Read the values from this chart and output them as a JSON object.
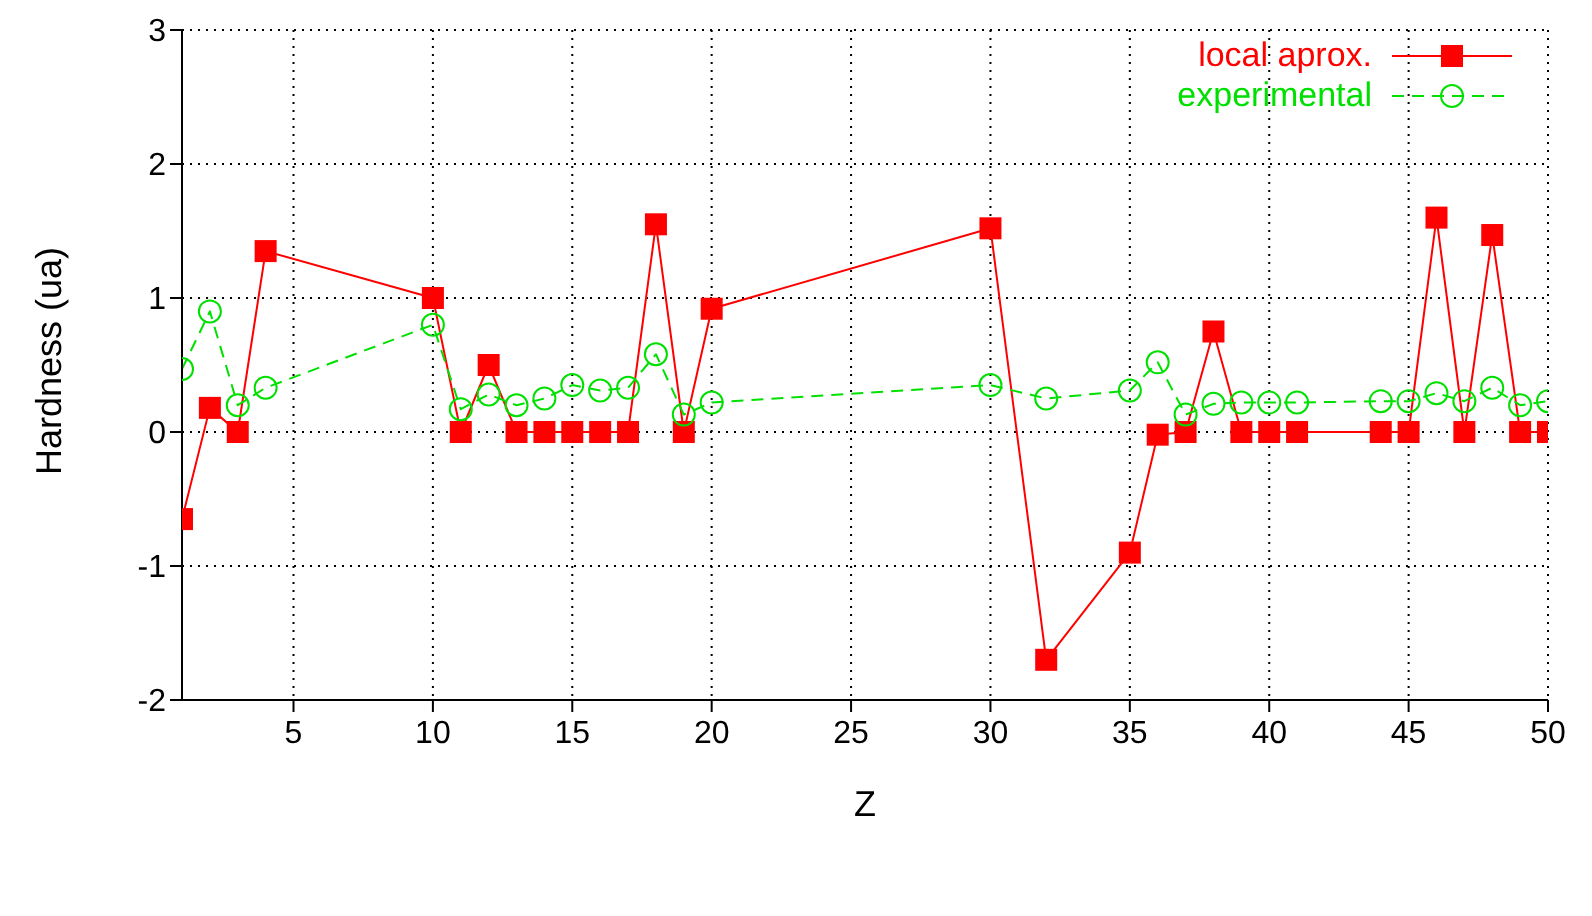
{
  "chart_data": {
    "type": "line",
    "xlabel": "Z",
    "ylabel": "Hardness (ua)",
    "x": [
      1,
      2,
      3,
      4,
      10,
      11,
      12,
      13,
      14,
      15,
      16,
      17,
      18,
      19,
      20,
      30,
      32,
      35,
      36,
      37,
      38,
      39,
      40,
      41,
      44,
      45,
      46,
      47,
      48,
      49,
      50
    ],
    "series": [
      {
        "name": "local aprox.",
        "color": "#ff0000",
        "marker": "square",
        "line_style": "solid",
        "values": [
          -0.65,
          0.18,
          0,
          1.35,
          1.0,
          0,
          0.5,
          0,
          0,
          0,
          0,
          0,
          1.55,
          0,
          0.92,
          1.52,
          -1.7,
          -0.9,
          -0.02,
          0,
          0.75,
          0,
          0,
          0,
          0,
          0,
          1.6,
          0,
          1.47,
          0,
          0
        ]
      },
      {
        "name": "experimental",
        "color": "#00e000",
        "marker": "circle",
        "line_style": "dashed",
        "values": [
          0.47,
          0.9,
          0.2,
          0.33,
          0.8,
          0.17,
          0.28,
          0.2,
          0.25,
          0.35,
          0.31,
          0.33,
          0.58,
          0.13,
          0.22,
          0.35,
          0.25,
          0.31,
          0.52,
          0.13,
          0.21,
          0.22,
          0.22,
          0.22,
          0.23,
          0.23,
          0.29,
          0.23,
          0.33,
          0.2,
          0.23
        ]
      }
    ],
    "xlim": [
      1,
      50
    ],
    "xticks": [
      5,
      10,
      15,
      20,
      25,
      30,
      35,
      40,
      45,
      50
    ],
    "ylim": [
      -2,
      3
    ],
    "yticks": [
      -2,
      -1,
      0,
      1,
      2,
      3
    ],
    "grid": true,
    "legend": "top right"
  }
}
